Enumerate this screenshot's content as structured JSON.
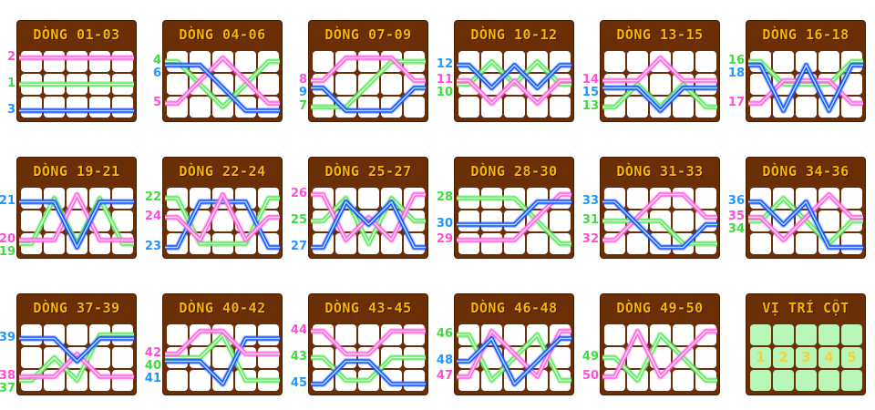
{
  "colors": {
    "green": "#5fe85f",
    "pink": "#ff66e0",
    "blue": "#1f4fff",
    "label_green": "#3fdc3f",
    "label_pink": "#ff4fd8",
    "label_blue": "#2196ff"
  },
  "panels": [
    {
      "title": "DÒNG 01-03",
      "lines": [
        {
          "id": "1",
          "color": "green",
          "rows": [
            1,
            1,
            1,
            1,
            1
          ]
        },
        {
          "id": "2",
          "color": "pink",
          "rows": [
            0,
            0,
            0,
            0,
            0
          ]
        },
        {
          "id": "3",
          "color": "blue",
          "rows": [
            2,
            2,
            2,
            2,
            2
          ]
        }
      ]
    },
    {
      "title": "DÒNG 04-06",
      "lines": [
        {
          "id": "4",
          "color": "green",
          "rows": [
            0,
            1,
            2,
            1,
            0
          ]
        },
        {
          "id": "5",
          "color": "pink",
          "rows": [
            2,
            1,
            0,
            1,
            2
          ]
        },
        {
          "id": "6",
          "color": "blue",
          "rows": [
            0,
            0,
            1,
            2,
            2
          ]
        }
      ]
    },
    {
      "title": "DÒNG 07-09",
      "lines": [
        {
          "id": "7",
          "color": "green",
          "rows": [
            2,
            2,
            1,
            0,
            0
          ]
        },
        {
          "id": "8",
          "color": "pink",
          "rows": [
            1,
            0,
            0,
            0,
            1
          ]
        },
        {
          "id": "9",
          "color": "blue",
          "rows": [
            1,
            2,
            2,
            2,
            1
          ]
        }
      ]
    },
    {
      "title": "DÒNG 10-12",
      "lines": [
        {
          "id": "10",
          "color": "green",
          "rows": [
            1,
            0,
            1,
            0,
            1
          ]
        },
        {
          "id": "11",
          "color": "pink",
          "rows": [
            1,
            2,
            1,
            2,
            1
          ]
        },
        {
          "id": "12",
          "color": "blue",
          "rows": [
            0,
            1,
            0,
            1,
            0
          ]
        }
      ]
    },
    {
      "title": "DÒNG 13-15",
      "lines": [
        {
          "id": "13",
          "color": "green",
          "rows": [
            2,
            1,
            2,
            1,
            2
          ]
        },
        {
          "id": "14",
          "color": "pink",
          "rows": [
            1,
            1,
            0,
            1,
            1
          ]
        },
        {
          "id": "15",
          "color": "blue",
          "rows": [
            1,
            1,
            2,
            1,
            1
          ]
        }
      ]
    },
    {
      "title": "DÒNG 16-18",
      "lines": [
        {
          "id": "16",
          "color": "green",
          "rows": [
            0,
            1,
            1,
            1,
            0
          ]
        },
        {
          "id": "17",
          "color": "pink",
          "rows": [
            2,
            1,
            1,
            1,
            2
          ]
        },
        {
          "id": "18",
          "color": "blue",
          "rows": [
            0,
            2,
            0,
            2,
            0
          ]
        }
      ]
    },
    {
      "title": "DÒNG 19-21",
      "lines": [
        {
          "id": "19",
          "color": "green",
          "rows": [
            2,
            0,
            2,
            0,
            2
          ]
        },
        {
          "id": "20",
          "color": "pink",
          "rows": [
            2,
            2,
            0,
            2,
            2
          ]
        },
        {
          "id": "21",
          "color": "blue",
          "rows": [
            0,
            0,
            2,
            0,
            0
          ]
        }
      ]
    },
    {
      "title": "DÒNG 22-24",
      "lines": [
        {
          "id": "22",
          "color": "green",
          "rows": [
            0,
            2,
            2,
            2,
            0
          ]
        },
        {
          "id": "23",
          "color": "blue",
          "rows": [
            2,
            0,
            0,
            0,
            2
          ]
        },
        {
          "id": "24",
          "color": "pink",
          "rows": [
            1,
            2,
            0,
            2,
            1
          ]
        }
      ]
    },
    {
      "title": "DÒNG 25-27",
      "lines": [
        {
          "id": "25",
          "color": "green",
          "rows": [
            1,
            0,
            2,
            0,
            1
          ]
        },
        {
          "id": "26",
          "color": "pink",
          "rows": [
            0,
            2,
            1,
            2,
            0
          ]
        },
        {
          "id": "27",
          "color": "blue",
          "rows": [
            2,
            0,
            1,
            0,
            2
          ]
        }
      ]
    },
    {
      "title": "DÒNG 28-30",
      "lines": [
        {
          "id": "28",
          "color": "green",
          "rows": [
            0,
            0,
            0,
            1,
            2
          ]
        },
        {
          "id": "29",
          "color": "pink",
          "rows": [
            2,
            2,
            2,
            1,
            0
          ]
        },
        {
          "id": "30",
          "color": "blue",
          "rows": [
            1,
            1,
            1,
            0,
            0
          ]
        }
      ]
    },
    {
      "title": "DÒNG 31-33",
      "lines": [
        {
          "id": "31",
          "color": "green",
          "rows": [
            1,
            1,
            1,
            2,
            2
          ]
        },
        {
          "id": "32",
          "color": "pink",
          "rows": [
            2,
            1,
            0,
            0,
            1
          ]
        },
        {
          "id": "33",
          "color": "blue",
          "rows": [
            0,
            1,
            2,
            2,
            1
          ]
        }
      ]
    },
    {
      "title": "DÒNG 34-36",
      "lines": [
        {
          "id": "34",
          "color": "green",
          "rows": [
            1,
            0,
            1,
            2,
            1
          ]
        },
        {
          "id": "35",
          "color": "pink",
          "rows": [
            1,
            2,
            1,
            0,
            1
          ]
        },
        {
          "id": "36",
          "color": "blue",
          "rows": [
            0,
            1,
            0,
            2,
            2
          ]
        }
      ]
    },
    {
      "title": "DÒNG 37-39",
      "lines": [
        {
          "id": "37",
          "color": "green",
          "rows": [
            2,
            1,
            2,
            0,
            0
          ]
        },
        {
          "id": "38",
          "color": "pink",
          "rows": [
            2,
            2,
            1,
            2,
            2
          ]
        },
        {
          "id": "39",
          "color": "blue",
          "rows": [
            0,
            0,
            1,
            0,
            0
          ]
        }
      ]
    },
    {
      "title": "DÒNG 40-42",
      "lines": [
        {
          "id": "40",
          "color": "green",
          "rows": [
            1,
            1,
            0,
            2,
            2
          ]
        },
        {
          "id": "41",
          "color": "blue",
          "rows": [
            1,
            1,
            2,
            0,
            0
          ]
        },
        {
          "id": "42",
          "color": "pink",
          "rows": [
            1,
            0,
            0,
            1,
            1
          ]
        }
      ]
    },
    {
      "title": "DÒNG 43-45",
      "lines": [
        {
          "id": "43",
          "color": "green",
          "rows": [
            1,
            2,
            2,
            1,
            1
          ]
        },
        {
          "id": "44",
          "color": "pink",
          "rows": [
            0,
            1,
            1,
            0,
            0
          ]
        },
        {
          "id": "45",
          "color": "blue",
          "rows": [
            2,
            1,
            1,
            2,
            2
          ]
        }
      ]
    },
    {
      "title": "DÒNG 46-48",
      "lines": [
        {
          "id": "46",
          "color": "green",
          "rows": [
            0,
            2,
            1,
            0,
            2
          ]
        },
        {
          "id": "47",
          "color": "pink",
          "rows": [
            2,
            0,
            1,
            2,
            0
          ]
        },
        {
          "id": "48",
          "color": "blue",
          "rows": [
            1,
            0,
            2,
            1,
            0
          ]
        }
      ]
    },
    {
      "title": "DÒNG 49-50",
      "lines": [
        {
          "id": "49",
          "color": "green",
          "rows": [
            1,
            2,
            0,
            1,
            2
          ]
        },
        {
          "id": "50",
          "color": "pink",
          "rows": [
            2,
            0,
            2,
            1,
            0
          ]
        }
      ]
    }
  ],
  "legend_panel": {
    "title": "VỊ TRÍ CỘT",
    "columns": [
      "1",
      "2",
      "3",
      "4",
      "5"
    ]
  }
}
